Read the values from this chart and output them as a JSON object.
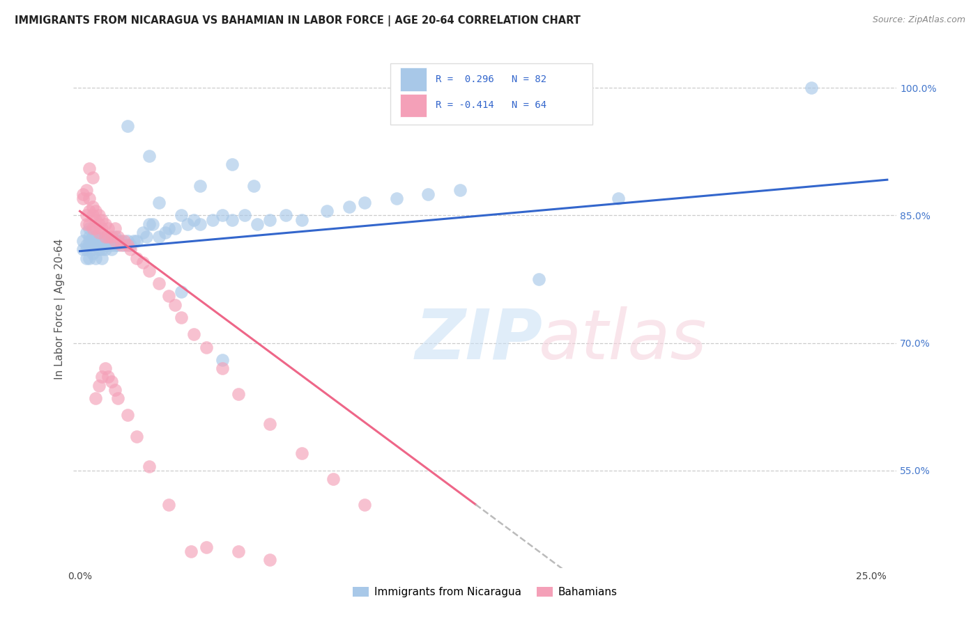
{
  "title": "IMMIGRANTS FROM NICARAGUA VS BAHAMIAN IN LABOR FORCE | AGE 20-64 CORRELATION CHART",
  "source": "Source: ZipAtlas.com",
  "ylabel": "In Labor Force | Age 20-64",
  "y_min": 0.435,
  "y_max": 1.045,
  "x_min": -0.002,
  "x_max": 0.258,
  "blue_color": "#a8c8e8",
  "pink_color": "#f4a0b8",
  "blue_line_color": "#3366cc",
  "pink_line_color": "#ee6688",
  "dashed_line_color": "#bbbbbb",
  "blue_line_x": [
    0.0,
    0.255
  ],
  "blue_line_y": [
    0.808,
    0.892
  ],
  "pink_line_x": [
    0.0,
    0.125
  ],
  "pink_line_y": [
    0.855,
    0.51
  ],
  "dashed_line_x": [
    0.125,
    0.255
  ],
  "dashed_line_y": [
    0.51,
    0.151
  ],
  "ytick_positions": [
    0.55,
    0.7,
    0.85,
    1.0
  ],
  "ytick_labels": [
    "55.0%",
    "70.0%",
    "85.0%",
    "100.0%"
  ],
  "xtick_positions": [
    0.0,
    0.25
  ],
  "xtick_labels": [
    "0.0%",
    "25.0%"
  ],
  "blue_scatter_x": [
    0.231,
    0.001,
    0.001,
    0.002,
    0.002,
    0.002,
    0.002,
    0.003,
    0.003,
    0.003,
    0.003,
    0.003,
    0.004,
    0.004,
    0.004,
    0.004,
    0.004,
    0.005,
    0.005,
    0.005,
    0.005,
    0.006,
    0.006,
    0.006,
    0.006,
    0.007,
    0.007,
    0.007,
    0.008,
    0.008,
    0.008,
    0.009,
    0.009,
    0.01,
    0.01,
    0.01,
    0.011,
    0.011,
    0.012,
    0.012,
    0.013,
    0.014,
    0.015,
    0.016,
    0.017,
    0.018,
    0.02,
    0.021,
    0.022,
    0.023,
    0.025,
    0.027,
    0.028,
    0.03,
    0.032,
    0.034,
    0.036,
    0.038,
    0.042,
    0.045,
    0.048,
    0.052,
    0.056,
    0.06,
    0.065,
    0.07,
    0.078,
    0.085,
    0.09,
    0.1,
    0.11,
    0.12,
    0.038,
    0.055,
    0.045,
    0.025,
    0.015,
    0.048,
    0.032,
    0.022,
    0.17,
    0.145
  ],
  "blue_scatter_y": [
    1.0,
    0.82,
    0.81,
    0.83,
    0.815,
    0.8,
    0.81,
    0.825,
    0.815,
    0.8,
    0.82,
    0.835,
    0.81,
    0.825,
    0.805,
    0.82,
    0.815,
    0.825,
    0.815,
    0.8,
    0.82,
    0.81,
    0.825,
    0.815,
    0.82,
    0.81,
    0.815,
    0.8,
    0.815,
    0.825,
    0.81,
    0.82,
    0.815,
    0.815,
    0.82,
    0.81,
    0.815,
    0.825,
    0.82,
    0.815,
    0.82,
    0.815,
    0.82,
    0.815,
    0.82,
    0.82,
    0.83,
    0.825,
    0.84,
    0.84,
    0.825,
    0.83,
    0.835,
    0.835,
    0.85,
    0.84,
    0.845,
    0.84,
    0.845,
    0.85,
    0.845,
    0.85,
    0.84,
    0.845,
    0.85,
    0.845,
    0.855,
    0.86,
    0.865,
    0.87,
    0.875,
    0.88,
    0.885,
    0.885,
    0.68,
    0.865,
    0.955,
    0.91,
    0.76,
    0.92,
    0.87,
    0.775
  ],
  "pink_scatter_x": [
    0.001,
    0.001,
    0.002,
    0.002,
    0.002,
    0.003,
    0.003,
    0.003,
    0.004,
    0.004,
    0.004,
    0.005,
    0.005,
    0.005,
    0.006,
    0.006,
    0.006,
    0.007,
    0.007,
    0.008,
    0.008,
    0.009,
    0.009,
    0.01,
    0.011,
    0.011,
    0.012,
    0.013,
    0.014,
    0.015,
    0.016,
    0.018,
    0.02,
    0.022,
    0.025,
    0.028,
    0.03,
    0.032,
    0.036,
    0.04,
    0.045,
    0.05,
    0.06,
    0.07,
    0.08,
    0.09,
    0.003,
    0.004,
    0.005,
    0.006,
    0.007,
    0.008,
    0.009,
    0.01,
    0.011,
    0.012,
    0.015,
    0.018,
    0.022,
    0.028,
    0.035,
    0.04,
    0.05,
    0.06
  ],
  "pink_scatter_y": [
    0.875,
    0.87,
    0.88,
    0.85,
    0.84,
    0.87,
    0.855,
    0.84,
    0.86,
    0.85,
    0.835,
    0.855,
    0.845,
    0.835,
    0.85,
    0.84,
    0.83,
    0.845,
    0.835,
    0.84,
    0.825,
    0.835,
    0.825,
    0.825,
    0.835,
    0.82,
    0.825,
    0.815,
    0.82,
    0.815,
    0.81,
    0.8,
    0.795,
    0.785,
    0.77,
    0.755,
    0.745,
    0.73,
    0.71,
    0.695,
    0.67,
    0.64,
    0.605,
    0.57,
    0.54,
    0.51,
    0.905,
    0.895,
    0.635,
    0.65,
    0.66,
    0.67,
    0.66,
    0.655,
    0.645,
    0.635,
    0.615,
    0.59,
    0.555,
    0.51,
    0.455,
    0.46,
    0.455,
    0.445
  ]
}
